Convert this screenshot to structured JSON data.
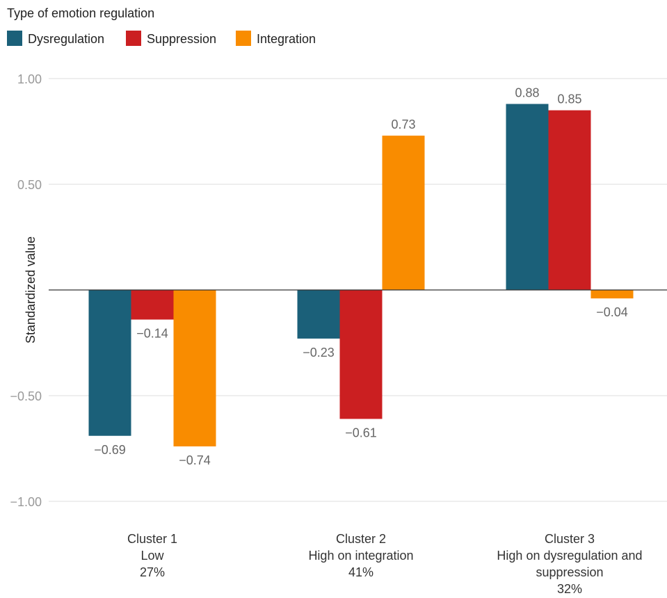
{
  "chart_data": {
    "type": "bar",
    "legend_title": "Type of emotion regulation",
    "legend_position": "top-left",
    "ylabel": "Standardized value",
    "xlabel": "",
    "ylim": [
      -1.0,
      1.0
    ],
    "yticks": [
      1.0,
      0.5,
      0,
      -0.5,
      -1.0
    ],
    "ytick_labels": [
      "1.00",
      "0.50",
      "",
      "-0.50",
      "-1.00"
    ],
    "grid": true,
    "categories": [
      [
        "Cluster 1",
        "Low",
        "27%"
      ],
      [
        "Cluster 2",
        "High on integration",
        "41%"
      ],
      [
        "Cluster 3",
        "High on dysregulation and",
        "suppression",
        "32%"
      ]
    ],
    "series": [
      {
        "name": "Dysregulation",
        "color": "#1b6079",
        "values": [
          -0.69,
          -0.23,
          0.88
        ],
        "labels": [
          "-0.69",
          "-0.23",
          "0.88"
        ]
      },
      {
        "name": "Suppression",
        "color": "#cb1f21",
        "values": [
          -0.14,
          -0.61,
          0.85
        ],
        "labels": [
          "-0.14",
          "-0.61",
          "0.85"
        ]
      },
      {
        "name": "Integration",
        "color": "#f98c00",
        "values": [
          -0.74,
          0.73,
          -0.04
        ],
        "labels": [
          "-0.74",
          "0.73",
          "-0.04"
        ]
      }
    ]
  }
}
